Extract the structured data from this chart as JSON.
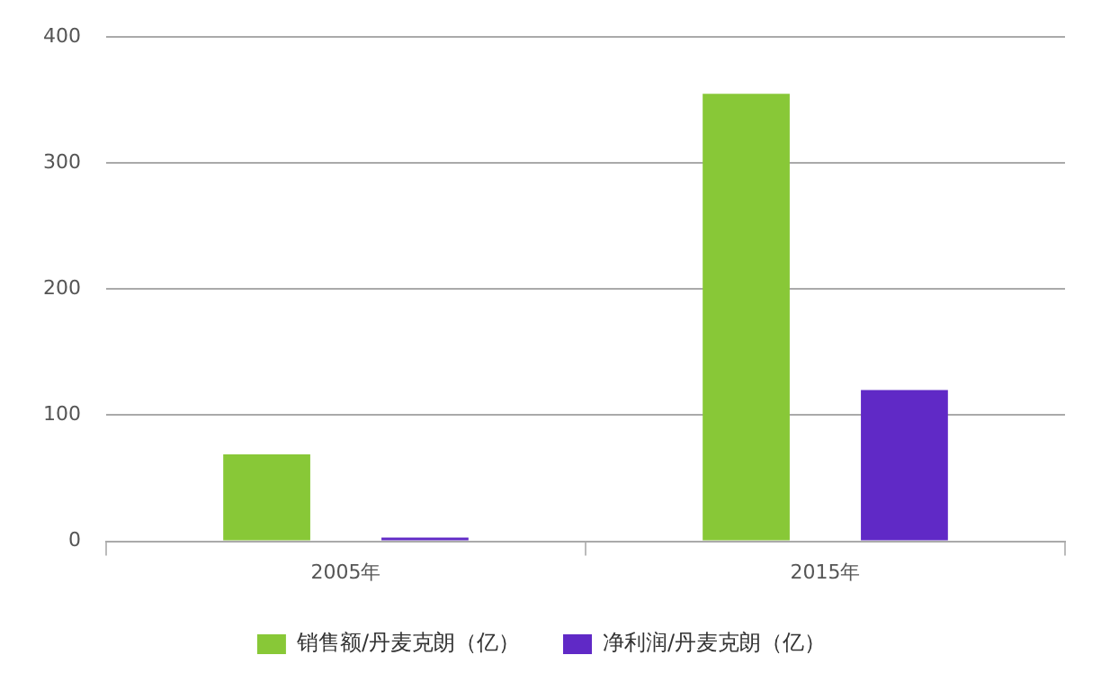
{
  "chart_data": {
    "type": "bar",
    "categories": [
      "2005年",
      "2015年"
    ],
    "series": [
      {
        "name": "销售额/丹麦克朗（亿）",
        "color": "#88c837",
        "values": [
          69,
          355
        ]
      },
      {
        "name": "净利润/丹麦克朗（亿）",
        "color": "#6029c6",
        "values": [
          3,
          120
        ]
      }
    ],
    "ylim": [
      0,
      400
    ],
    "yticks": [
      0,
      100,
      200,
      300,
      400
    ],
    "grid": "y",
    "legend": "bottom"
  }
}
